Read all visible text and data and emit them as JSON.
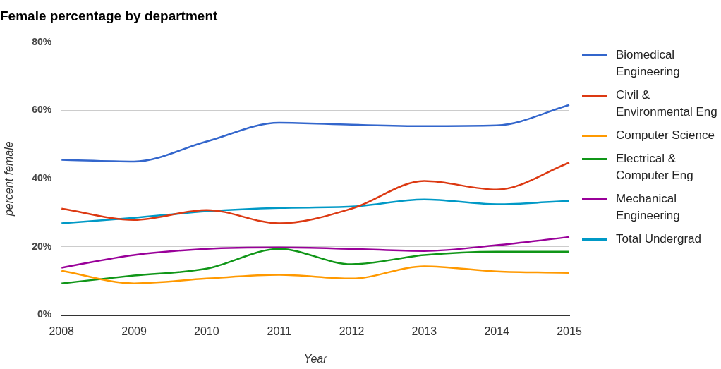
{
  "chart_data": {
    "type": "line",
    "title": "Female percentage by department",
    "xlabel": "Year",
    "ylabel": "percent female",
    "categories": [
      "2008",
      "2009",
      "2010",
      "2011",
      "2012",
      "2013",
      "2014",
      "2015"
    ],
    "series": [
      {
        "name": "Biomedical Engineering",
        "color": "#3366cc",
        "values": [
          45.5,
          45,
          50.9,
          56.4,
          55.8,
          55.4,
          55.6,
          61.6
        ]
      },
      {
        "name": "Civil & Environmental Eng",
        "color": "#dc3912",
        "values": [
          31.2,
          27.9,
          30.8,
          26.9,
          31.2,
          39.3,
          36.8,
          44.7
        ]
      },
      {
        "name": "Computer Science",
        "color": "#ff9900",
        "values": [
          13,
          9.3,
          10.7,
          11.8,
          10.7,
          14.3,
          12.8,
          12.4
        ]
      },
      {
        "name": "Electrical & Computer Eng",
        "color": "#109618",
        "values": [
          9.3,
          11.6,
          13.6,
          19.4,
          14.9,
          17.6,
          18.6,
          18.6
        ]
      },
      {
        "name": "Mechanical Engineering",
        "color": "#990099",
        "values": [
          13.9,
          17.6,
          19.4,
          19.8,
          19.4,
          18.8,
          20.5,
          22.9
        ]
      },
      {
        "name": "Total Undergrad",
        "color": "#0099c6",
        "values": [
          26.9,
          28.5,
          30.4,
          31.4,
          31.8,
          33.9,
          32.5,
          33.5
        ]
      }
    ],
    "ylim": [
      0,
      80
    ],
    "yticks": [
      {
        "value": 0,
        "label": "0%"
      },
      {
        "value": 20,
        "label": "20%"
      },
      {
        "value": 40,
        "label": "40%"
      },
      {
        "value": 60,
        "label": "60%"
      },
      {
        "value": 80,
        "label": "80%"
      }
    ],
    "grid": "y",
    "legend": "right",
    "marker": "none",
    "line_style": "solid"
  }
}
